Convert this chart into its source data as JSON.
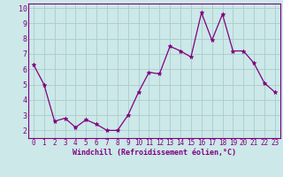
{
  "x": [
    0,
    1,
    2,
    3,
    4,
    5,
    6,
    7,
    8,
    9,
    10,
    11,
    12,
    13,
    14,
    15,
    16,
    17,
    18,
    19,
    20,
    21,
    22,
    23
  ],
  "y": [
    6.3,
    5.0,
    2.6,
    2.8,
    2.2,
    2.7,
    2.4,
    2.0,
    2.0,
    3.0,
    4.5,
    5.8,
    5.7,
    7.5,
    7.2,
    6.8,
    9.7,
    7.9,
    9.6,
    7.2,
    7.2,
    6.4,
    5.1,
    4.5
  ],
  "line_color": "#800080",
  "marker": "*",
  "marker_size": 3.5,
  "bg_color": "#cce8e8",
  "grid_color": "#aacccc",
  "xlabel": "Windchill (Refroidissement éolien,°C)",
  "xlabel_color": "#800080",
  "tick_color": "#800080",
  "xlim": [
    -0.5,
    23.5
  ],
  "ylim": [
    1.5,
    10.3
  ],
  "yticks": [
    2,
    3,
    4,
    5,
    6,
    7,
    8,
    9,
    10
  ],
  "xticks": [
    0,
    1,
    2,
    3,
    4,
    5,
    6,
    7,
    8,
    9,
    10,
    11,
    12,
    13,
    14,
    15,
    16,
    17,
    18,
    19,
    20,
    21,
    22,
    23
  ],
  "spine_color": "#800080",
  "label_fontsize": 6.0,
  "tick_fontsize": 5.5
}
